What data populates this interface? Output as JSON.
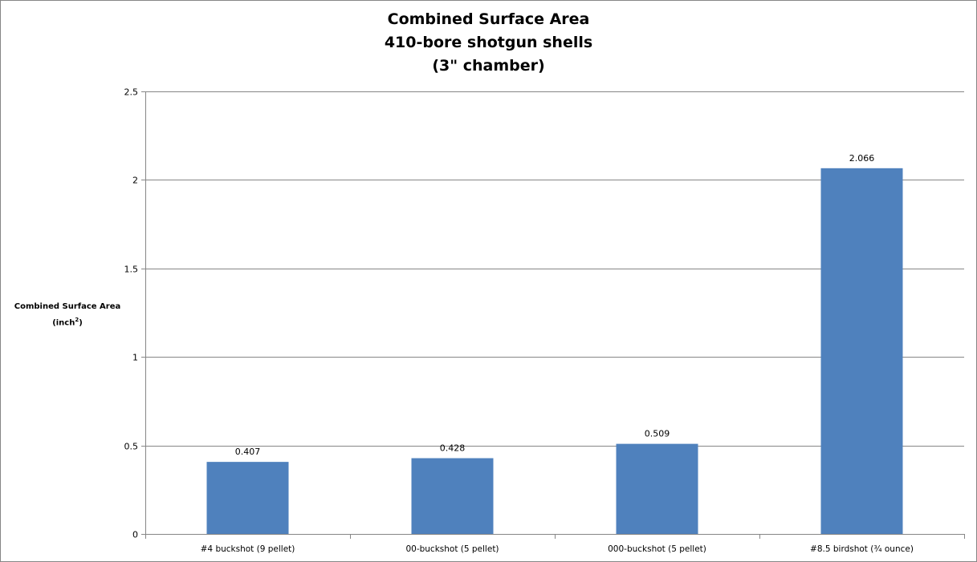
{
  "chart_data": {
    "type": "bar",
    "title_lines": [
      "Combined Surface Area",
      "410-bore shotgun shells",
      "(3\" chamber)"
    ],
    "ylabel": {
      "main": "Combined Surface Area",
      "unit": "(inch",
      "unit_sup": "2",
      "unit_close": ")"
    },
    "xlabel": "",
    "categories": [
      "#4 buckshot (9 pellet)",
      "00-buckshot (5 pellet)",
      "000-buckshot (5 pellet)",
      "#8.5 birdshot (¾ ounce)"
    ],
    "values": [
      0.407,
      0.428,
      0.509,
      2.066
    ],
    "data_labels": [
      "0.407",
      "0.428",
      "0.509",
      "2.066"
    ],
    "ylim": [
      0,
      2.5
    ],
    "yticks": [
      0,
      0.5,
      1,
      1.5,
      2,
      2.5
    ],
    "ytick_labels": [
      "0",
      "0.5",
      "1",
      "1.5",
      "2",
      "2.5"
    ],
    "grid": true,
    "legend": "none",
    "bar_color": "#4F81BD",
    "grid_color": "#868686"
  }
}
